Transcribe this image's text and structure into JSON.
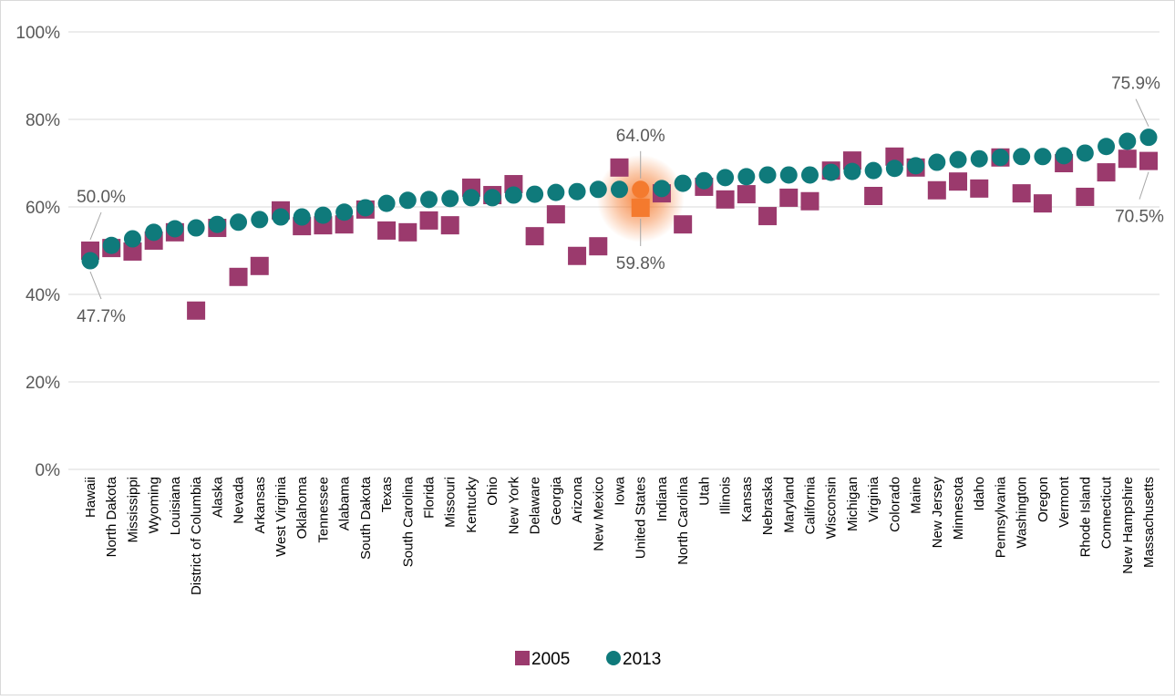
{
  "chart_data": {
    "type": "scatter",
    "categories": [
      "Hawaii",
      "North Dakota",
      "Mississippi",
      "Wyoming",
      "Louisiana",
      "District of Columbia",
      "Alaska",
      "Nevada",
      "Arkansas",
      "West Virginia",
      "Oklahoma",
      "Tennessee",
      "Alabama",
      "South Dakota",
      "Texas",
      "South Carolina",
      "Florida",
      "Missouri",
      "Kentucky",
      "Ohio",
      "New York",
      "Delaware",
      "Georgia",
      "Arizona",
      "New Mexico",
      "Iowa",
      "United States",
      "Indiana",
      "North Carolina",
      "Utah",
      "Illinois",
      "Kansas",
      "Nebraska",
      "Maryland",
      "California",
      "Wisconsin",
      "Michigan",
      "Virginia",
      "Colorado",
      "Maine",
      "New Jersey",
      "Minnesota",
      "Idaho",
      "Pennsylvania",
      "Washington",
      "Oregon",
      "Vermont",
      "Rhode Island",
      "Connecticut",
      "New Hampshire",
      "Massachusetts"
    ],
    "series": [
      {
        "name": "2005",
        "color": "#9b3a6d",
        "marker": "square",
        "values": [
          50.0,
          50.6,
          49.8,
          52.3,
          54.2,
          36.3,
          55.2,
          44.0,
          46.5,
          59.2,
          55.6,
          55.8,
          56.0,
          59.4,
          54.6,
          54.2,
          56.9,
          55.8,
          64.4,
          62.7,
          65.2,
          53.3,
          58.3,
          48.8,
          51.0,
          69.0,
          59.8,
          63.1,
          56.0,
          64.6,
          61.7,
          62.9,
          57.9,
          62.1,
          61.3,
          68.3,
          70.6,
          62.5,
          71.5,
          69.0,
          63.8,
          65.8,
          64.2,
          71.3,
          63.1,
          60.8,
          70.0,
          62.3,
          67.9,
          71.0,
          70.5
        ],
        "value_labels": [
          "50.0%",
          null,
          null,
          null,
          null,
          null,
          null,
          null,
          null,
          null,
          null,
          null,
          null,
          null,
          null,
          null,
          null,
          null,
          null,
          null,
          null,
          null,
          null,
          null,
          null,
          null,
          "59.8%",
          null,
          null,
          null,
          null,
          null,
          null,
          null,
          null,
          null,
          null,
          null,
          null,
          null,
          null,
          null,
          null,
          null,
          null,
          null,
          null,
          null,
          null,
          null,
          "70.5%"
        ]
      },
      {
        "name": "2013",
        "color": "#0f7a7b",
        "marker": "circle",
        "values": [
          47.7,
          51.2,
          52.7,
          54.2,
          55.0,
          55.2,
          56.0,
          56.5,
          57.1,
          57.7,
          57.7,
          58.1,
          58.8,
          59.8,
          60.8,
          61.5,
          61.7,
          61.9,
          62.1,
          62.1,
          62.7,
          62.9,
          63.3,
          63.5,
          64.0,
          64.0,
          64.0,
          64.2,
          65.4,
          66.0,
          66.7,
          66.9,
          67.3,
          67.3,
          67.3,
          67.9,
          68.1,
          68.3,
          68.8,
          69.4,
          70.2,
          70.8,
          71.0,
          71.3,
          71.5,
          71.5,
          71.7,
          72.3,
          73.8,
          75.0,
          75.9
        ],
        "value_labels": [
          "47.7%",
          null,
          null,
          null,
          null,
          null,
          null,
          null,
          null,
          null,
          null,
          null,
          null,
          null,
          null,
          null,
          null,
          null,
          null,
          null,
          null,
          null,
          null,
          null,
          null,
          null,
          "64.0%",
          null,
          null,
          null,
          null,
          null,
          null,
          null,
          null,
          null,
          null,
          null,
          null,
          null,
          null,
          null,
          null,
          null,
          null,
          null,
          null,
          null,
          null,
          null,
          "75.9%"
        ]
      }
    ],
    "highlight": {
      "category": "United States",
      "color": "#f47a2e"
    },
    "ylim": [
      0,
      100
    ],
    "yticks": [
      {
        "value": 0,
        "label": "0%"
      },
      {
        "value": 20,
        "label": "20%"
      },
      {
        "value": 40,
        "label": "40%"
      },
      {
        "value": 60,
        "label": "60%"
      },
      {
        "value": 80,
        "label": "80%"
      },
      {
        "value": 100,
        "label": "100%"
      }
    ],
    "grid": true,
    "legend": "bottom"
  }
}
